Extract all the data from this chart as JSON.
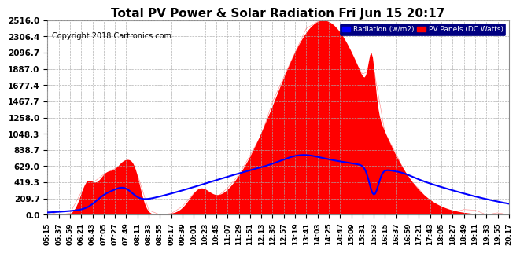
{
  "title": "Total PV Power & Solar Radiation Fri Jun 15 20:17",
  "copyright": "Copyright 2018 Cartronics.com",
  "background_color": "#ffffff",
  "plot_bg_color": "#ffffff",
  "yticks": [
    0.0,
    209.7,
    419.3,
    629.0,
    838.7,
    1048.3,
    1258.0,
    1467.7,
    1677.4,
    1887.0,
    2096.7,
    2306.4,
    2516.0
  ],
  "ymax": 2516.0,
  "ymin": 0.0,
  "radiation_color": "#0000ff",
  "pv_fill_color": "#ff0000",
  "pv_edge_color": "#ff0000",
  "grid_color": "#aaaaaa",
  "legend_radiation_bg": "#0000ff",
  "legend_pv_bg": "#ff0000",
  "legend_radiation_text": "Radiation (w/m2)",
  "legend_pv_text": "PV Panels (DC Watts)",
  "title_fontsize": 11,
  "copyright_fontsize": 7,
  "tick_fontsize": 6.5,
  "ytick_fontsize": 7.5
}
